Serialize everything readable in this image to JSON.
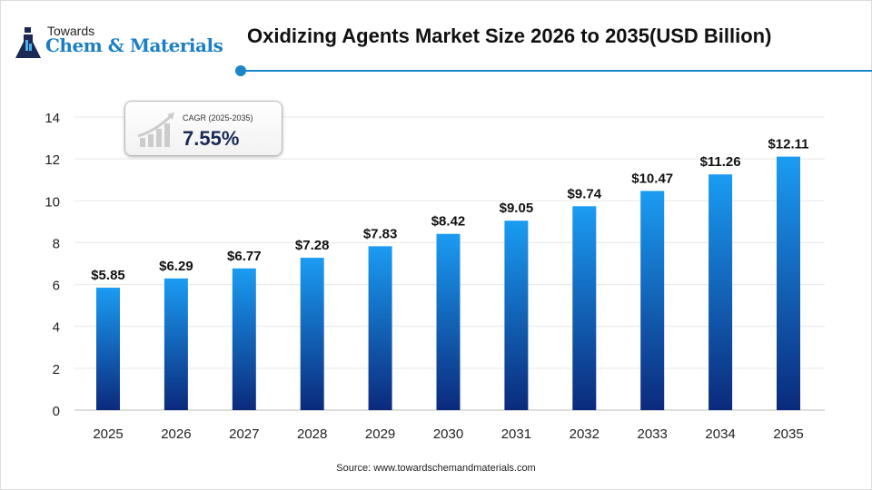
{
  "logo": {
    "top": "Towards",
    "main": "Chem & Materials"
  },
  "source": "Source:  www.towardschemandmaterials.com",
  "cagr": {
    "label": "CAGR (2025-2035)",
    "value": "7.55%"
  },
  "colors": {
    "bar_top": "#1a9cf2",
    "bar_bottom": "#0b2a7c",
    "accent": "#1a86c8"
  },
  "chart_data": {
    "type": "bar",
    "title": "Oxidizing Agents Market Size 2026 to 2035(USD Billion)",
    "categories": [
      "2025",
      "2026",
      "2027",
      "2028",
      "2029",
      "2030",
      "2031",
      "2032",
      "2033",
      "2034",
      "2035"
    ],
    "values": [
      5.85,
      6.29,
      6.77,
      7.28,
      7.83,
      8.42,
      9.05,
      9.74,
      10.47,
      11.26,
      12.11
    ],
    "data_labels": [
      "$5.85",
      "$6.29",
      "$6.77",
      "$7.28",
      "$7.83",
      "$8.42",
      "$9.05",
      "$9.74",
      "$10.47",
      "$11.26",
      "$12.11"
    ],
    "ylim": [
      0,
      14
    ],
    "yticks": [
      0,
      2,
      4,
      6,
      8,
      10,
      12,
      14
    ],
    "grid": true,
    "xlabel": "",
    "ylabel": ""
  }
}
